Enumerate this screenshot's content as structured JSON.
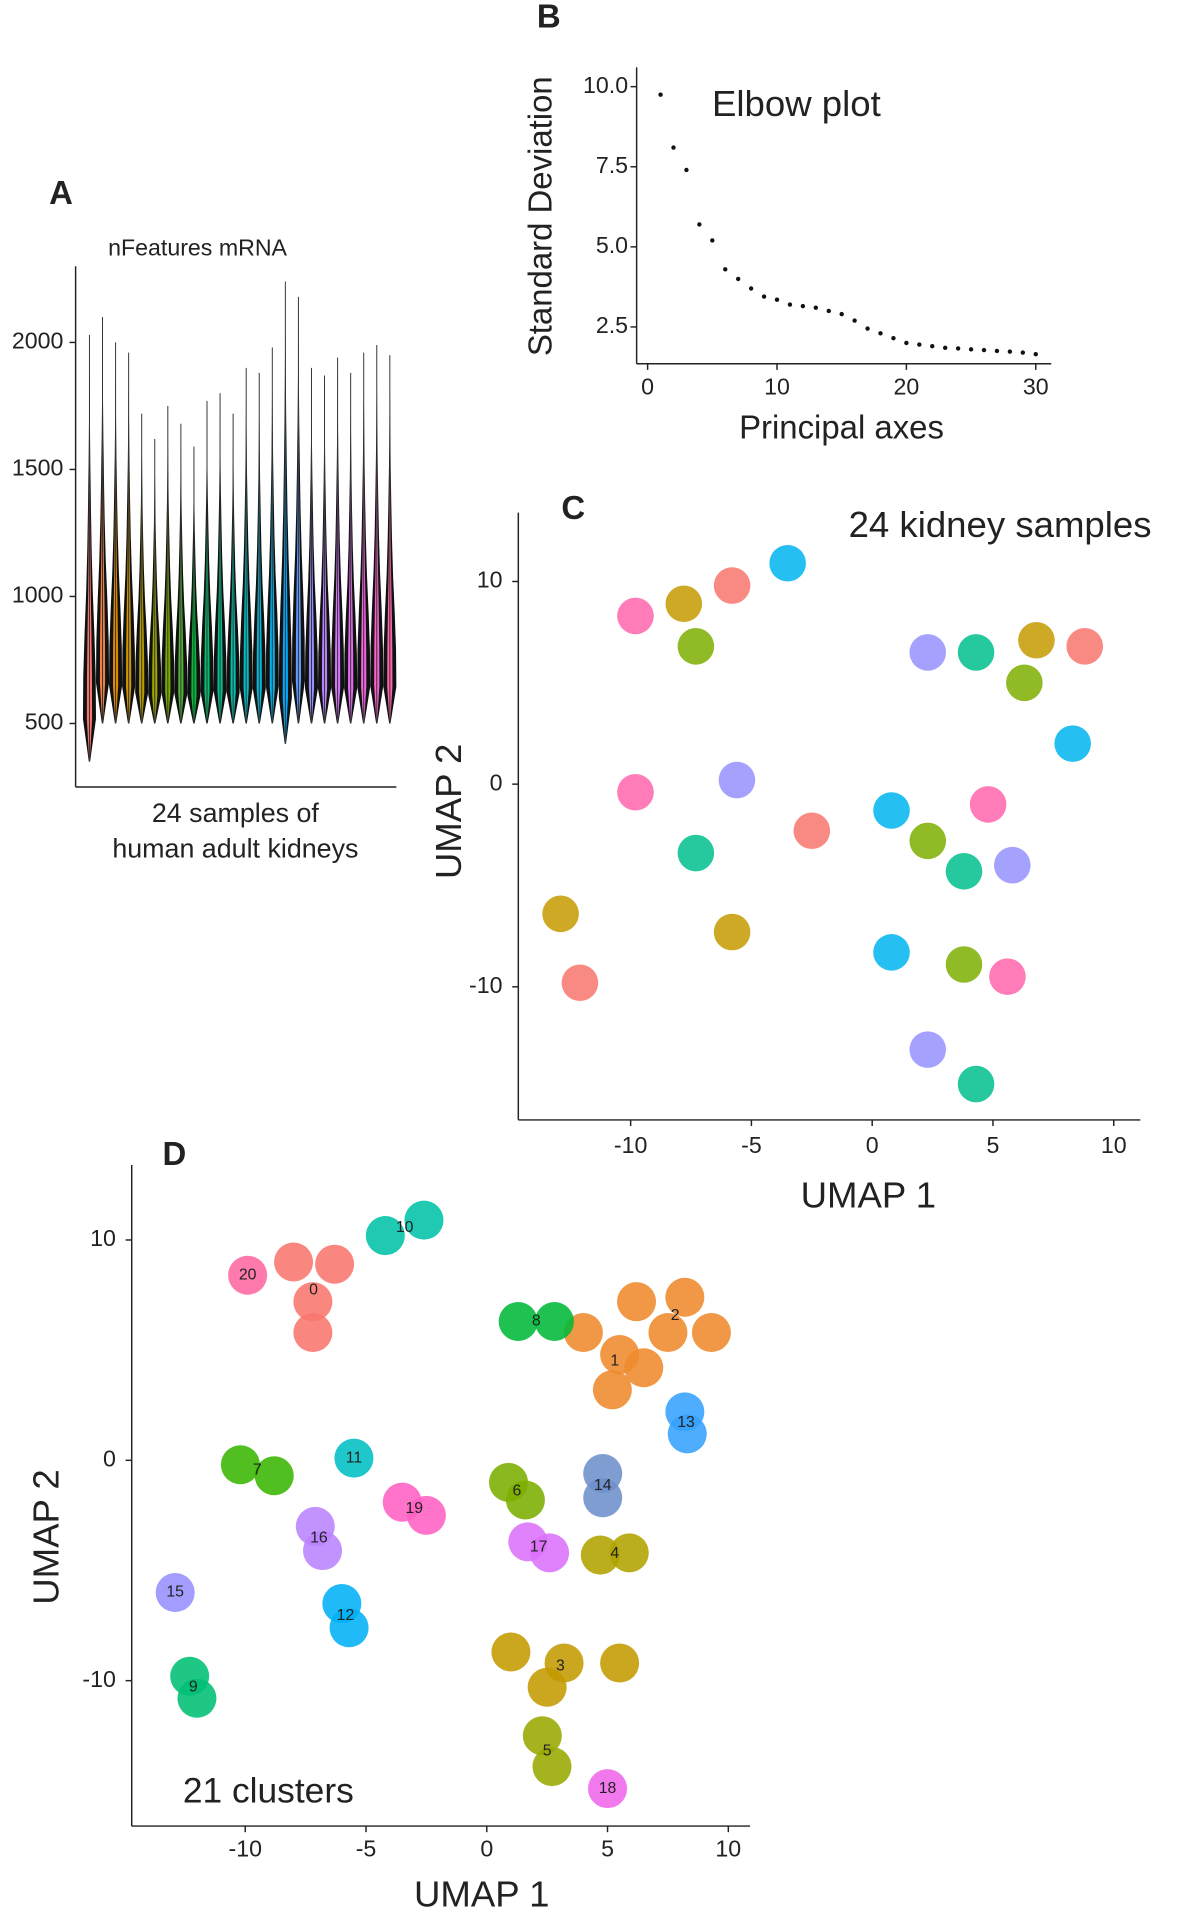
{
  "chart_data": [
    {
      "type": "violin",
      "panel": "A",
      "title": "nFeatures mRNA",
      "x_label": [
        "24 samples of",
        "human adult kidneys"
      ],
      "max": [
        2030,
        2100,
        2000,
        1960,
        1720,
        1620,
        1750,
        1680,
        1590,
        1770,
        1800,
        1720,
        1900,
        1880,
        1980,
        2240,
        2180,
        1900,
        1870,
        1940,
        1880,
        1960,
        1990,
        1950
      ],
      "min": [
        350,
        500,
        500,
        500,
        500,
        500,
        500,
        500,
        500,
        500,
        500,
        500,
        500,
        500,
        500,
        420,
        500,
        500,
        500,
        500,
        500,
        500,
        500,
        500
      ],
      "colors": [
        "#F8766D",
        "#EE8044",
        "#E18A00",
        "#CE9500",
        "#B79F00",
        "#9DA700",
        "#7CAE00",
        "#4FB433",
        "#00BA38",
        "#00BE6C",
        "#00C08D",
        "#00C1AA",
        "#00BFC4",
        "#00BBDB",
        "#00B4EF",
        "#00A9FF",
        "#619CFF",
        "#9590FF",
        "#B983FF",
        "#D575FE",
        "#E76BF3",
        "#F564E3",
        "#FD61D1",
        "#FF65AC"
      ],
      "ylim": [
        250,
        2300
      ],
      "yticks": [
        500,
        1000,
        1500,
        2000
      ]
    },
    {
      "type": "scatter",
      "panel": "B",
      "annotation": "Elbow plot",
      "x_label": "Principal axes",
      "y_label": "Standard Deviation",
      "x": [
        1,
        2,
        3,
        4,
        5,
        6,
        7,
        8,
        9,
        10,
        11,
        12,
        13,
        14,
        15,
        16,
        17,
        18,
        19,
        20,
        21,
        22,
        23,
        24,
        25,
        26,
        27,
        28,
        29,
        30
      ],
      "y": [
        9.75,
        8.1,
        7.4,
        5.7,
        5.2,
        4.3,
        4.0,
        3.7,
        3.45,
        3.35,
        3.2,
        3.15,
        3.1,
        3.0,
        2.9,
        2.7,
        2.45,
        2.3,
        2.15,
        2.0,
        1.95,
        1.9,
        1.85,
        1.83,
        1.8,
        1.78,
        1.75,
        1.73,
        1.7,
        1.65
      ],
      "color": "#111111",
      "xlim": [
        -0.85,
        31.2
      ],
      "xticks": [
        0,
        10,
        20,
        30
      ],
      "ylim": [
        1.35,
        10.6
      ],
      "yticks": [
        {
          "value": 2.5,
          "label": "2.5"
        },
        {
          "value": 5,
          "label": "5.0"
        },
        {
          "value": 7.5,
          "label": "7.5"
        },
        {
          "value": 10,
          "label": "10.0"
        }
      ]
    },
    {
      "type": "scatter",
      "panel": "C",
      "annotation": "24 kidney samples",
      "x_label": "UMAP 1",
      "y_label": "UMAP 2",
      "x": [
        -7.8,
        -5.8,
        -3.5,
        -7.3,
        -9.8,
        2.3,
        4.3,
        6.8,
        8.8,
        8.3,
        6.3,
        -9.8,
        -5.6,
        -7.3,
        -5.8,
        -2.5,
        0.8,
        2.3,
        4.8,
        5.8,
        3.8,
        -12.9,
        -12.1,
        0.8,
        3.8,
        5.6,
        2.3,
        4.3
      ],
      "y": [
        8.9,
        9.8,
        10.9,
        6.8,
        8.3,
        6.5,
        6.5,
        7.1,
        6.8,
        2.0,
        5.0,
        -0.4,
        0.2,
        -3.4,
        -7.3,
        -2.3,
        -1.3,
        -2.8,
        -1.0,
        -4.0,
        -4.3,
        -6.4,
        -9.8,
        -8.3,
        -8.9,
        -9.5,
        -13.1,
        -14.8
      ],
      "colors": [
        "#C49A00",
        "#F8766D",
        "#00B4EF",
        "#7CAE00",
        "#FF65AC",
        "#9590FF",
        "#00C08D"
      ],
      "xlim": [
        -14.65,
        11.1
      ],
      "xticks": [
        -10,
        -5,
        0,
        5,
        10
      ],
      "ylim": [
        -16.57,
        13.4
      ],
      "yticks": [
        -10,
        0,
        10
      ]
    },
    {
      "type": "scatter",
      "panel": "D",
      "annotation": "21 clusters",
      "x_label": "UMAP 1",
      "y_label": "UMAP 2",
      "series": [
        {
          "name": "0",
          "color": "#F8766D",
          "x": [
            -8,
            -6.3,
            -7.2,
            -7.2
          ],
          "y": [
            9,
            8.9,
            7.2,
            5.8
          ]
        },
        {
          "name": "1",
          "color": "#EE8A2C",
          "x": [
            4.0,
            5.5,
            6.5,
            5.2
          ],
          "y": [
            5.8,
            4.8,
            4.2,
            3.2
          ]
        },
        {
          "name": "2",
          "color": "#EE8A2C",
          "x": [
            6.2,
            8.2,
            9.3,
            7.5
          ],
          "y": [
            7.2,
            7.4,
            5.8,
            5.8
          ]
        },
        {
          "name": "3",
          "color": "#C49A00",
          "x": [
            1.0,
            3.2,
            5.5,
            2.5
          ],
          "y": [
            -8.7,
            -9.2,
            -9.2,
            -10.3
          ]
        },
        {
          "name": "4",
          "color": "#B0A300",
          "x": [
            4.7,
            5.9
          ],
          "y": [
            -4.3,
            -4.2
          ]
        },
        {
          "name": "5",
          "color": "#99A800",
          "x": [
            2.3,
            2.7
          ],
          "y": [
            -12.5,
            -13.9
          ]
        },
        {
          "name": "6",
          "color": "#7CAE00",
          "x": [
            0.9,
            1.6
          ],
          "y": [
            -1.0,
            -1.8
          ]
        },
        {
          "name": "7",
          "color": "#39B600",
          "x": [
            -10.2,
            -8.8
          ],
          "y": [
            -0.2,
            -0.7
          ]
        },
        {
          "name": "8",
          "color": "#00BA38",
          "x": [
            1.3,
            2.8
          ],
          "y": [
            6.3,
            6.3
          ]
        },
        {
          "name": "9",
          "color": "#00BF74",
          "x": [
            -12.3,
            -12.0
          ],
          "y": [
            -9.8,
            -10.8
          ]
        },
        {
          "name": "10",
          "color": "#00C1A7",
          "x": [
            -4.2,
            -2.6
          ],
          "y": [
            10.2,
            10.9
          ]
        },
        {
          "name": "11",
          "color": "#00BFC4",
          "x": [
            -5.5
          ],
          "y": [
            0.1
          ]
        },
        {
          "name": "12",
          "color": "#00B0F6",
          "x": [
            -6.0,
            -5.7
          ],
          "y": [
            -6.5,
            -7.6
          ]
        },
        {
          "name": "13",
          "color": "#35A2FF",
          "x": [
            8.2,
            8.3
          ],
          "y": [
            2.2,
            1.2
          ]
        },
        {
          "name": "14",
          "color": "#6E8FCC",
          "x": [
            4.8,
            4.8
          ],
          "y": [
            -0.6,
            -1.7
          ]
        },
        {
          "name": "15",
          "color": "#9590FF",
          "x": [
            -12.9
          ],
          "y": [
            -6.0
          ]
        },
        {
          "name": "16",
          "color": "#B983FF",
          "x": [
            -7.1,
            -6.8
          ],
          "y": [
            -3.0,
            -4.1
          ]
        },
        {
          "name": "17",
          "color": "#DC71FA",
          "x": [
            1.7,
            2.6
          ],
          "y": [
            -3.7,
            -4.2
          ]
        },
        {
          "name": "18",
          "color": "#F066EA",
          "x": [
            5.0
          ],
          "y": [
            -14.9
          ]
        },
        {
          "name": "19",
          "color": "#FF61C3",
          "x": [
            -3.5,
            -2.5
          ],
          "y": [
            -1.9,
            -2.5
          ]
        },
        {
          "name": "20",
          "color": "#FF68A1",
          "x": [
            -9.9
          ],
          "y": [
            8.4
          ]
        }
      ],
      "xlim": [
        -14.7,
        10.9
      ],
      "xticks": [
        -10,
        -5,
        0,
        5,
        10
      ],
      "ylim": [
        -16.6,
        13.4
      ],
      "yticks": [
        -10,
        0,
        10
      ]
    }
  ]
}
